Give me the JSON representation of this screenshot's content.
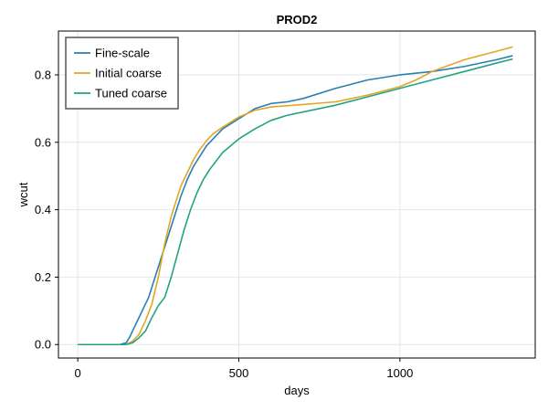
{
  "chart_data": {
    "type": "line",
    "title": "PROD2",
    "xlabel": "days",
    "ylabel": "wcut",
    "xlim": [
      -60,
      1420
    ],
    "ylim": [
      -0.04,
      0.93
    ],
    "xticks": [
      0,
      500,
      1000
    ],
    "yticks": [
      0.0,
      0.2,
      0.4,
      0.6,
      0.8
    ],
    "xtick_labels": [
      "0",
      "500",
      "1000"
    ],
    "ytick_labels": [
      "0.0",
      "0.2",
      "0.4",
      "0.6",
      "0.8"
    ],
    "grid": true,
    "legend_position": "top-left",
    "series": [
      {
        "name": "Fine-scale",
        "color": "#2a7fb0",
        "x": [
          0,
          50,
          100,
          130,
          150,
          160,
          180,
          200,
          220,
          240,
          260,
          280,
          300,
          320,
          340,
          360,
          380,
          400,
          450,
          500,
          550,
          600,
          650,
          700,
          800,
          900,
          1000,
          1100,
          1200,
          1300,
          1350
        ],
        "y": [
          0.0,
          0.0,
          0.0,
          0.0,
          0.005,
          0.02,
          0.06,
          0.1,
          0.14,
          0.2,
          0.26,
          0.32,
          0.38,
          0.44,
          0.49,
          0.53,
          0.56,
          0.59,
          0.64,
          0.67,
          0.7,
          0.715,
          0.72,
          0.73,
          0.76,
          0.785,
          0.8,
          0.81,
          0.825,
          0.845,
          0.857
        ]
      },
      {
        "name": "Initial coarse",
        "color": "#e0a626",
        "x": [
          0,
          50,
          100,
          150,
          170,
          190,
          210,
          230,
          250,
          270,
          290,
          300,
          320,
          340,
          360,
          380,
          400,
          420,
          450,
          500,
          550,
          600,
          700,
          800,
          900,
          1000,
          1050,
          1100,
          1200,
          1300,
          1350
        ],
        "y": [
          0.0,
          0.0,
          0.0,
          0.0,
          0.01,
          0.03,
          0.07,
          0.12,
          0.2,
          0.3,
          0.38,
          0.41,
          0.47,
          0.51,
          0.55,
          0.58,
          0.605,
          0.625,
          0.645,
          0.675,
          0.695,
          0.705,
          0.712,
          0.72,
          0.74,
          0.765,
          0.785,
          0.81,
          0.845,
          0.87,
          0.883
        ]
      },
      {
        "name": "Tuned coarse",
        "color": "#21a384",
        "x": [
          0,
          50,
          100,
          150,
          170,
          190,
          210,
          230,
          250,
          270,
          290,
          310,
          330,
          350,
          370,
          390,
          410,
          450,
          500,
          550,
          600,
          650,
          700,
          800,
          900,
          1000,
          1100,
          1200,
          1300,
          1350
        ],
        "y": [
          0.0,
          0.0,
          0.0,
          0.0,
          0.005,
          0.02,
          0.04,
          0.08,
          0.115,
          0.14,
          0.2,
          0.27,
          0.34,
          0.4,
          0.45,
          0.49,
          0.52,
          0.57,
          0.61,
          0.64,
          0.665,
          0.68,
          0.69,
          0.71,
          0.735,
          0.76,
          0.785,
          0.81,
          0.835,
          0.847
        ]
      }
    ]
  }
}
